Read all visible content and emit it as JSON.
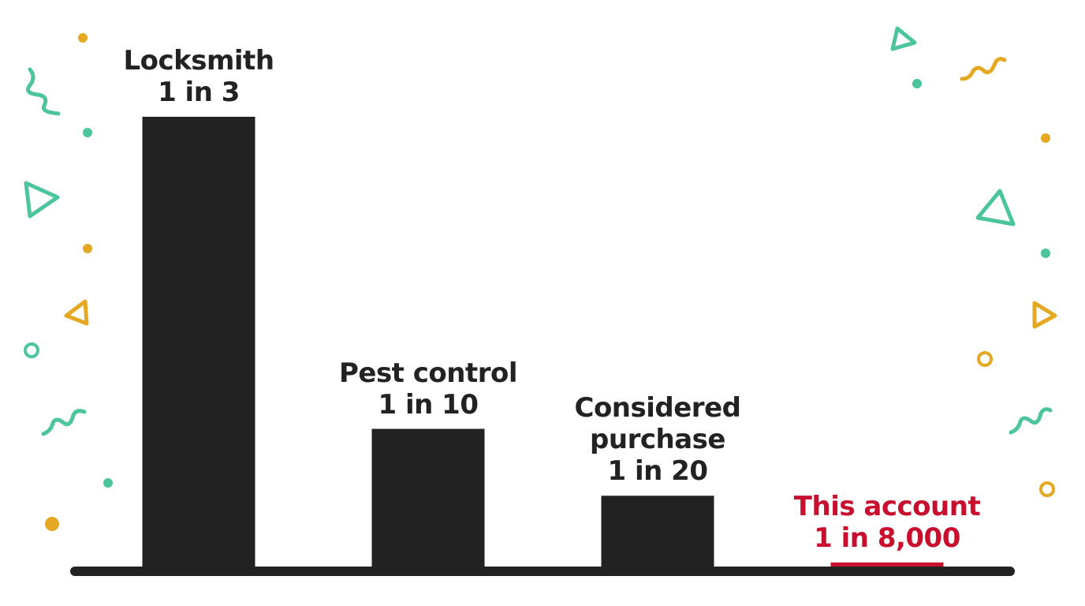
{
  "chart_data": {
    "type": "bar",
    "categories": [
      "Locksmith",
      "Pest control",
      "Considered purchase",
      "This account"
    ],
    "values": [
      3,
      10,
      20,
      8000
    ],
    "value_labels": [
      "1 in 3",
      "1 in 10",
      "1 in 20",
      "1 in 8,000"
    ],
    "scale": "reciprocal",
    "colors": [
      "#222222",
      "#222222",
      "#222222",
      "#c8102e"
    ]
  }
}
